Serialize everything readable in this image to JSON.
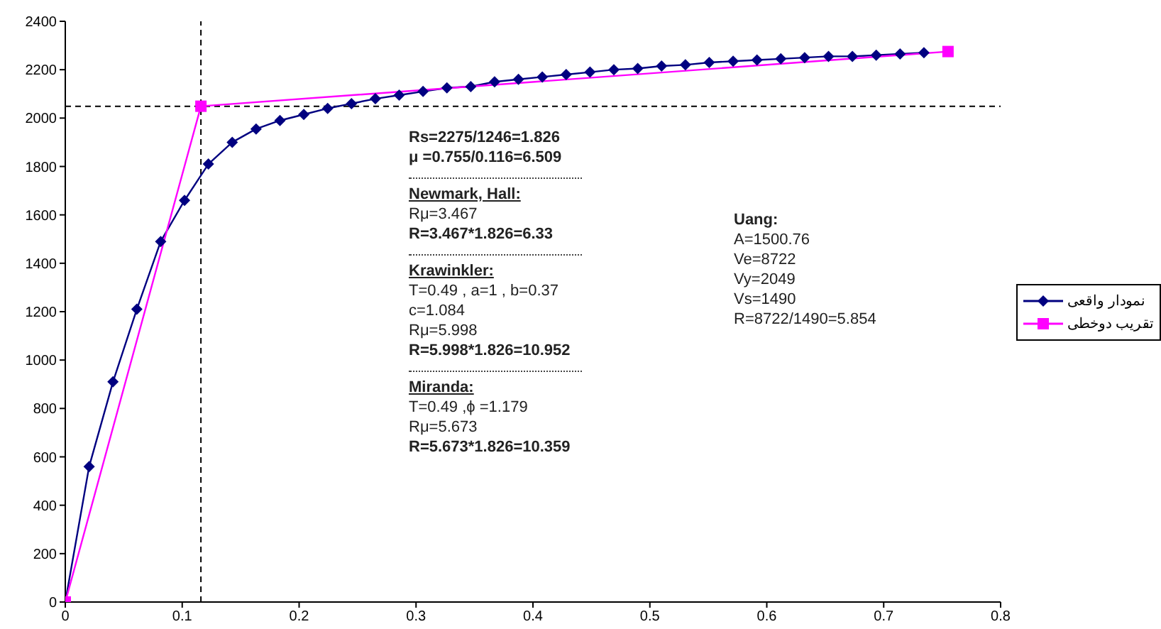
{
  "chart_data": {
    "type": "line",
    "xlim": [
      0,
      0.8
    ],
    "xticks": [
      0,
      0.1,
      0.2,
      0.3,
      0.4,
      0.5,
      0.6,
      0.7,
      0.8
    ],
    "ylim": [
      0,
      2400
    ],
    "yticks": [
      0,
      200,
      400,
      600,
      800,
      1000,
      1200,
      1400,
      1600,
      1800,
      2000,
      2200,
      2400
    ],
    "legend": "right",
    "line_style": "solid",
    "series": [
      {
        "name": "نمودار واقعی",
        "color": "#000080",
        "marker": "diamond",
        "x": [
          0,
          0.0204,
          0.0408,
          0.0612,
          0.0816,
          0.102,
          0.1224,
          0.1428,
          0.1632,
          0.1836,
          0.204,
          0.2244,
          0.2448,
          0.2652,
          0.2856,
          0.306,
          0.3264,
          0.3468,
          0.3672,
          0.3876,
          0.408,
          0.4284,
          0.4488,
          0.4692,
          0.4896,
          0.51,
          0.5304,
          0.5508,
          0.5712,
          0.5916,
          0.612,
          0.6324,
          0.6528,
          0.6732,
          0.6936,
          0.714,
          0.7344
        ],
        "values": [
          0,
          560,
          910,
          1210,
          1490,
          1660,
          1810,
          1900,
          1955,
          1990,
          2015,
          2040,
          2060,
          2080,
          2095,
          2110,
          2125,
          2130,
          2150,
          2160,
          2170,
          2180,
          2190,
          2200,
          2205,
          2215,
          2220,
          2230,
          2235,
          2240,
          2245,
          2250,
          2255,
          2255,
          2260,
          2265,
          2270
        ]
      },
      {
        "name": "تقریب دوخطی",
        "color": "#ff00ff",
        "marker": "square",
        "x": [
          0,
          0.116,
          0.755
        ],
        "values": [
          0,
          2049,
          2275
        ]
      }
    ],
    "ref_lines": [
      {
        "axis": "x",
        "value": 0.116,
        "color": "#000000",
        "line_style": "dashed"
      },
      {
        "axis": "y",
        "value": 2049,
        "color": "#000000",
        "line_style": "dashed"
      }
    ],
    "annotations": [
      "Rs=2275/1246=1.826",
      "μ =0.755/0.116=6.509",
      "Newmark, Hall:",
      "Rμ=3.467",
      "R=3.467*1.826=6.33",
      "Krawinkler:",
      "T=0.49 , a=1 , b=0.37",
      "c=1.084",
      "Rμ=5.998",
      "R=5.998*1.826=10.952",
      "Miranda:",
      "T=0.49 ,ϕ =1.179",
      "Rμ=5.673",
      "R=5.673*1.826=10.359",
      "Uang:",
      "A=1500.76",
      "Ve=8722",
      "Vy=2049",
      "Vs=1490",
      "R=8722/1490=5.854"
    ]
  }
}
